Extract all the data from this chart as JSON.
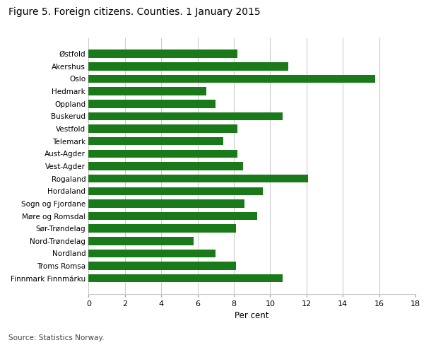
{
  "title": "Figure 5. Foreign citizens. Counties. 1 January 2015",
  "categories": [
    "Østfold",
    "Akershus",
    "Oslo",
    "Hedmark",
    "Oppland",
    "Buskerud",
    "Vestfold",
    "Telemark",
    "Aust-Agder",
    "Vest-Agder",
    "Rogaland",
    "Hordaland",
    "Sogn og Fjordane",
    "Møre og Romsdal",
    "Sør-Trøndelag",
    "Nord-Trøndelag",
    "Nordland",
    "Troms Romsa",
    "Finnmark Finnmárku"
  ],
  "values": [
    8.2,
    11.0,
    15.8,
    6.5,
    7.0,
    10.7,
    8.2,
    7.4,
    8.2,
    8.5,
    12.1,
    9.6,
    8.6,
    9.3,
    8.1,
    5.8,
    7.0,
    8.1,
    10.7
  ],
  "bar_color": "#1a7a1a",
  "xlabel": "Per cent",
  "xlim": [
    0,
    18
  ],
  "xticks": [
    0,
    2,
    4,
    6,
    8,
    10,
    12,
    14,
    16,
    18
  ],
  "source": "Source: Statistics Norway.",
  "background_color": "#ffffff",
  "grid_color": "#cccccc"
}
